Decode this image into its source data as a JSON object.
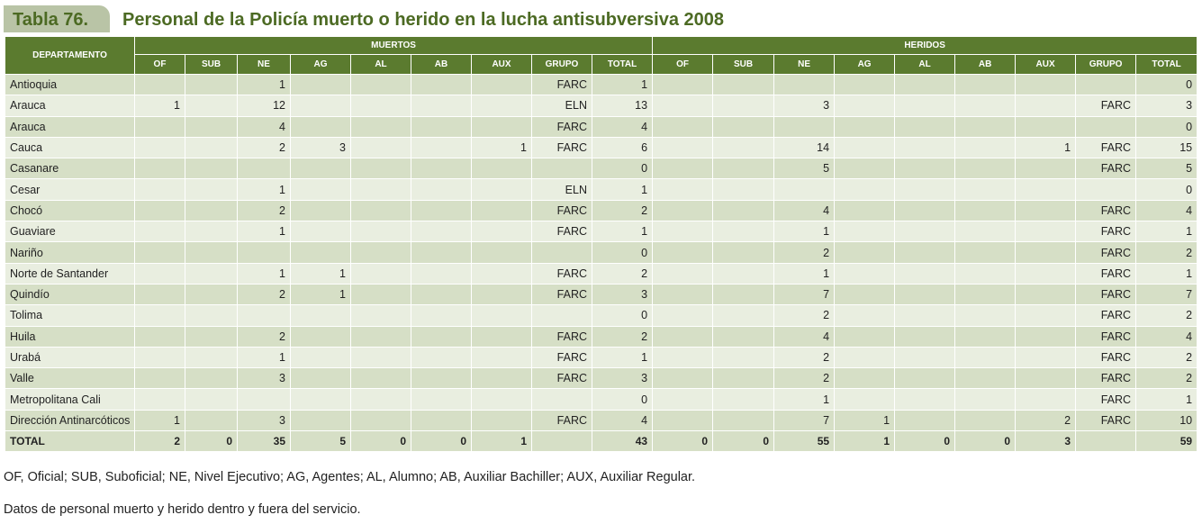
{
  "header": {
    "tab": "Tabla 76.",
    "title": "Personal de la Policía muerto o herido en la lucha antisubversiva 2008"
  },
  "table": {
    "first_header": "DEPARTAMENTO",
    "groups": [
      {
        "label": "MUERTOS",
        "columns": [
          "OF",
          "SUB",
          "NE",
          "AG",
          "AL",
          "AB",
          "AUX",
          "GRUPO",
          "TOTAL"
        ]
      },
      {
        "label": "HERIDOS",
        "columns": [
          "OF",
          "SUB",
          "NE",
          "AG",
          "AL",
          "AB",
          "AUX",
          "GRUPO",
          "TOTAL"
        ]
      }
    ],
    "rows": [
      {
        "label": "Antioquia",
        "cells": [
          null,
          null,
          1,
          null,
          null,
          null,
          null,
          "FARC",
          1,
          null,
          null,
          null,
          null,
          null,
          null,
          null,
          null,
          0
        ]
      },
      {
        "label": "Arauca",
        "cells": [
          1,
          null,
          12,
          null,
          null,
          null,
          null,
          "ELN",
          13,
          null,
          null,
          3,
          null,
          null,
          null,
          null,
          "FARC",
          3
        ]
      },
      {
        "label": "Arauca",
        "cells": [
          null,
          null,
          4,
          null,
          null,
          null,
          null,
          "FARC",
          4,
          null,
          null,
          null,
          null,
          null,
          null,
          null,
          null,
          0
        ]
      },
      {
        "label": "Cauca",
        "cells": [
          null,
          null,
          2,
          3,
          null,
          null,
          1,
          "FARC",
          6,
          null,
          null,
          14,
          null,
          null,
          null,
          1,
          "FARC",
          15
        ]
      },
      {
        "label": "Casanare",
        "cells": [
          null,
          null,
          null,
          null,
          null,
          null,
          null,
          null,
          0,
          null,
          null,
          5,
          null,
          null,
          null,
          null,
          "FARC",
          5
        ]
      },
      {
        "label": "Cesar",
        "cells": [
          null,
          null,
          1,
          null,
          null,
          null,
          null,
          "ELN",
          1,
          null,
          null,
          null,
          null,
          null,
          null,
          null,
          null,
          0
        ]
      },
      {
        "label": "Chocó",
        "cells": [
          null,
          null,
          2,
          null,
          null,
          null,
          null,
          "FARC",
          2,
          null,
          null,
          4,
          null,
          null,
          null,
          null,
          "FARC",
          4
        ]
      },
      {
        "label": "Guaviare",
        "cells": [
          null,
          null,
          1,
          null,
          null,
          null,
          null,
          "FARC",
          1,
          null,
          null,
          1,
          null,
          null,
          null,
          null,
          "FARC",
          1
        ]
      },
      {
        "label": "Nariño",
        "cells": [
          null,
          null,
          null,
          null,
          null,
          null,
          null,
          null,
          0,
          null,
          null,
          2,
          null,
          null,
          null,
          null,
          "FARC",
          2
        ]
      },
      {
        "label": "Norte de Santander",
        "cells": [
          null,
          null,
          1,
          1,
          null,
          null,
          null,
          "FARC",
          2,
          null,
          null,
          1,
          null,
          null,
          null,
          null,
          "FARC",
          1
        ]
      },
      {
        "label": "Quindío",
        "cells": [
          null,
          null,
          2,
          1,
          null,
          null,
          null,
          "FARC",
          3,
          null,
          null,
          7,
          null,
          null,
          null,
          null,
          "FARC",
          7
        ]
      },
      {
        "label": "Tolima",
        "cells": [
          null,
          null,
          null,
          null,
          null,
          null,
          null,
          null,
          0,
          null,
          null,
          2,
          null,
          null,
          null,
          null,
          "FARC",
          2
        ]
      },
      {
        "label": "Huila",
        "cells": [
          null,
          null,
          2,
          null,
          null,
          null,
          null,
          "FARC",
          2,
          null,
          null,
          4,
          null,
          null,
          null,
          null,
          "FARC",
          4
        ]
      },
      {
        "label": "Urabá",
        "cells": [
          null,
          null,
          1,
          null,
          null,
          null,
          null,
          "FARC",
          1,
          null,
          null,
          2,
          null,
          null,
          null,
          null,
          "FARC",
          2
        ]
      },
      {
        "label": "Valle",
        "cells": [
          null,
          null,
          3,
          null,
          null,
          null,
          null,
          "FARC",
          3,
          null,
          null,
          2,
          null,
          null,
          null,
          null,
          "FARC",
          2
        ]
      },
      {
        "label": "Metropolitana Cali",
        "cells": [
          null,
          null,
          null,
          null,
          null,
          null,
          null,
          null,
          0,
          null,
          null,
          1,
          null,
          null,
          null,
          null,
          "FARC",
          1
        ]
      },
      {
        "label": "Dirección Antinarcóticos",
        "cells": [
          1,
          null,
          3,
          null,
          null,
          null,
          null,
          "FARC",
          4,
          null,
          null,
          7,
          1,
          null,
          null,
          2,
          "FARC",
          10
        ]
      },
      {
        "label": "TOTAL",
        "cells": [
          2,
          0,
          35,
          5,
          0,
          0,
          1,
          null,
          43,
          0,
          0,
          55,
          1,
          0,
          0,
          3,
          null,
          59
        ]
      }
    ]
  },
  "notes": [
    "OF, Oficial; SUB, Suboficial; NE, Nivel Ejecutivo; AG, Agentes; AL, Alumno; AB, Auxiliar Bachiller; AUX, Auxiliar Regular.",
    "Datos de personal muerto y herido dentro y fuera del servicio."
  ]
}
